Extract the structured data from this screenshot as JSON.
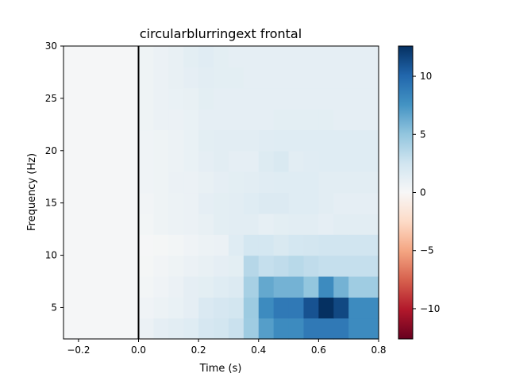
{
  "chart_data": {
    "type": "heatmap",
    "title": "circularblurringext frontal",
    "xlabel": "Time (s)",
    "ylabel": "Frequency (Hz)",
    "xlim": [
      -0.25,
      0.8
    ],
    "ylim": [
      2,
      30
    ],
    "x_ticks": [
      -0.2,
      0.0,
      0.2,
      0.4,
      0.6,
      0.8
    ],
    "x_tick_labels": [
      "−0.2",
      "0.0",
      "0.2",
      "0.4",
      "0.6",
      "0.8"
    ],
    "y_ticks": [
      5,
      10,
      15,
      20,
      25,
      30
    ],
    "y_tick_labels": [
      "5",
      "10",
      "15",
      "20",
      "25",
      "30"
    ],
    "colorbar": {
      "vmin": -12.6,
      "vmax": 12.6,
      "colormap": "RdBu",
      "ticks": [
        -10,
        -5,
        0,
        5,
        10
      ],
      "tick_labels": [
        "−10",
        "−5",
        "0",
        "5",
        "10"
      ]
    },
    "vline_x": 0.0,
    "x_edges": [
      -0.25,
      0.0,
      0.05,
      0.1,
      0.15,
      0.2,
      0.25,
      0.3,
      0.35,
      0.4,
      0.45,
      0.5,
      0.55,
      0.6,
      0.65,
      0.7,
      0.75,
      0.8
    ],
    "y_edges": [
      2,
      4,
      6,
      8,
      10,
      12,
      14,
      16,
      18,
      20,
      22,
      24,
      26,
      28,
      30
    ],
    "z": [
      [
        0.1,
        0.8,
        1.2,
        1.4,
        1.6,
        2.2,
        2.4,
        2.8,
        4.5,
        7.0,
        8.0,
        8.0,
        9.0,
        9.0,
        9.0,
        8.0,
        8.0
      ],
      [
        0.1,
        0.5,
        0.7,
        0.9,
        1.2,
        1.9,
        2.2,
        2.4,
        4.6,
        8.0,
        9.0,
        9.0,
        11.0,
        12.6,
        11.5,
        8.0,
        8.0
      ],
      [
        0.1,
        0.3,
        0.5,
        0.8,
        1.2,
        1.3,
        1.6,
        1.8,
        4.2,
        6.5,
        6.0,
        6.0,
        5.0,
        8.0,
        6.0,
        4.5,
        4.5
      ],
      [
        0.1,
        0.2,
        0.4,
        0.6,
        0.8,
        1.0,
        1.2,
        1.3,
        3.6,
        3.0,
        3.2,
        3.5,
        3.2,
        3.0,
        3.0,
        3.0,
        3.0
      ],
      [
        0.1,
        0.1,
        0.2,
        0.3,
        0.5,
        0.7,
        0.8,
        1.6,
        2.3,
        2.3,
        2.0,
        2.3,
        2.4,
        2.5,
        2.5,
        2.5,
        2.5
      ],
      [
        0.1,
        0.3,
        0.6,
        0.7,
        0.8,
        1.0,
        1.3,
        1.4,
        1.4,
        1.1,
        1.3,
        1.4,
        1.4,
        1.2,
        1.4,
        1.4,
        1.4
      ],
      [
        0.1,
        0.4,
        0.6,
        0.7,
        0.8,
        1.2,
        1.3,
        1.4,
        1.6,
        1.8,
        1.8,
        1.6,
        1.6,
        1.4,
        1.2,
        1.2,
        1.2
      ],
      [
        0.1,
        0.5,
        0.6,
        0.8,
        0.8,
        1.0,
        1.2,
        1.3,
        1.4,
        1.5,
        1.6,
        1.6,
        1.6,
        1.4,
        1.4,
        1.4,
        1.4
      ],
      [
        0.1,
        0.5,
        0.6,
        0.7,
        0.9,
        1.2,
        1.4,
        1.2,
        1.2,
        1.7,
        2.0,
        1.4,
        1.5,
        1.6,
        1.6,
        1.6,
        1.6
      ],
      [
        0.1,
        0.5,
        0.6,
        0.7,
        0.9,
        1.3,
        1.4,
        1.4,
        1.4,
        1.5,
        1.6,
        1.6,
        1.6,
        1.6,
        1.6,
        1.6,
        1.6
      ],
      [
        0.1,
        0.6,
        0.8,
        0.8,
        0.9,
        1.2,
        1.2,
        1.2,
        1.2,
        1.2,
        1.3,
        1.3,
        1.3,
        1.3,
        1.2,
        1.2,
        1.2
      ],
      [
        0.1,
        0.6,
        0.8,
        0.9,
        1.0,
        1.3,
        1.2,
        1.2,
        1.2,
        1.2,
        1.2,
        1.2,
        1.2,
        1.2,
        1.2,
        1.2,
        1.2
      ],
      [
        0.1,
        0.6,
        0.8,
        1.0,
        1.2,
        1.4,
        1.3,
        1.3,
        1.2,
        1.2,
        1.2,
        1.2,
        1.2,
        1.2,
        1.2,
        1.2,
        1.2
      ],
      [
        0.1,
        0.6,
        0.8,
        1.0,
        1.3,
        1.5,
        1.3,
        1.2,
        1.2,
        1.2,
        1.2,
        1.2,
        1.2,
        1.2,
        1.2,
        1.2,
        1.2
      ]
    ]
  }
}
